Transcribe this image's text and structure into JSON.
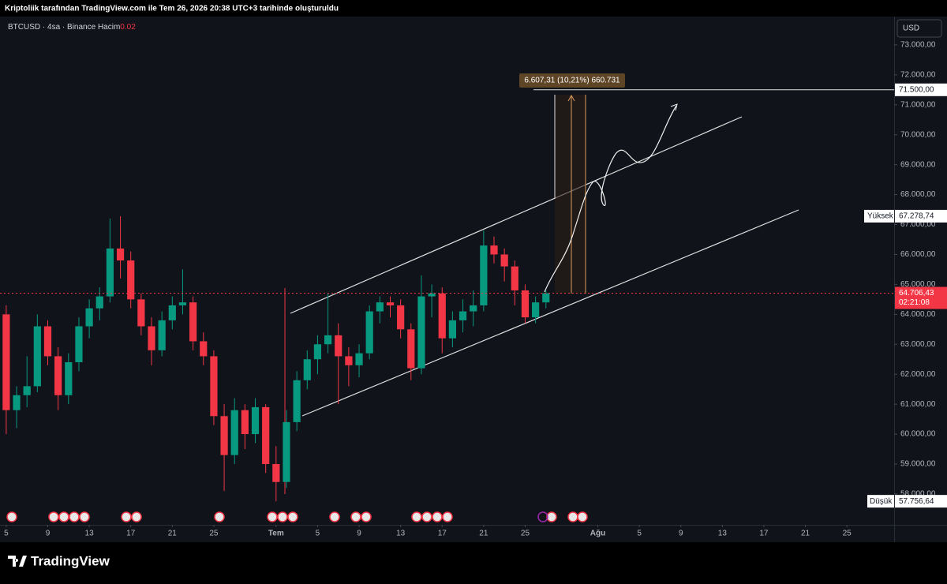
{
  "header": {
    "caption": "Kriptoliik tarafından TradingView.com ile Tem 26, 2026 20:38 UTC+3 tarihinde oluşturuldu",
    "brand": "TradingView"
  },
  "chart_data": {
    "type": "candlestick",
    "symbol": "BTCUSD",
    "interval": "4sa",
    "exchange": "Binance",
    "volume_name": "Hacim",
    "volume_value": 0.02,
    "currency": "USD",
    "up_color": "#089981",
    "down_color": "#f23645",
    "grid": false,
    "x": [
      5,
      6,
      7,
      8,
      9,
      10,
      11,
      12,
      13,
      14,
      15,
      16,
      17,
      18,
      19,
      20,
      21,
      22,
      23,
      24,
      25,
      26,
      27,
      28,
      29,
      30,
      31,
      32,
      33,
      34,
      35,
      36,
      37,
      38,
      39,
      40,
      41,
      42,
      43,
      44,
      45,
      46,
      47,
      48,
      49,
      50,
      51,
      52,
      53,
      54,
      55,
      56,
      57
    ],
    "open": [
      64000,
      60800,
      61300,
      61600,
      63600,
      62600,
      61300,
      62400,
      63600,
      64200,
      64600,
      66200,
      65800,
      64500,
      63600,
      62800,
      63800,
      64300,
      64400,
      63100,
      62600,
      60600,
      59300,
      60800,
      60000,
      60900,
      59000,
      58400,
      60400,
      61800,
      62500,
      63000,
      63300,
      62600,
      62300,
      62700,
      64100,
      64400,
      64300,
      63500,
      62200,
      64600,
      64700,
      63200,
      63800,
      64100,
      64300,
      66300,
      66000,
      65600,
      64800,
      63900,
      64400
    ],
    "high": [
      64300,
      61600,
      62600,
      64000,
      63800,
      62900,
      62700,
      63900,
      64500,
      64900,
      67200,
      67278.74,
      66100,
      64700,
      63900,
      64100,
      64600,
      65500,
      64600,
      63400,
      62800,
      61000,
      61200,
      61000,
      61200,
      61000,
      59600,
      60800,
      62100,
      62800,
      63300,
      64700,
      63700,
      62900,
      63000,
      64300,
      64600,
      64600,
      64500,
      63700,
      65300,
      65000,
      64900,
      64100,
      64500,
      64800,
      66800,
      66600,
      66200,
      65800,
      65000,
      64600,
      64800
    ],
    "low": [
      60000,
      60200,
      60900,
      61400,
      62300,
      60800,
      61000,
      62100,
      63200,
      63800,
      64400,
      65200,
      64200,
      63300,
      62300,
      62600,
      63500,
      64000,
      62800,
      62300,
      60300,
      58100,
      59000,
      59500,
      59700,
      58700,
      57756.64,
      58200,
      60100,
      61500,
      62000,
      62700,
      61000,
      61600,
      61900,
      62500,
      63700,
      63900,
      63200,
      61800,
      62000,
      63900,
      62700,
      62900,
      63400,
      63600,
      64100,
      65700,
      65100,
      64300,
      63700,
      63700,
      64200
    ],
    "close": [
      60800,
      61300,
      61600,
      63600,
      62600,
      61300,
      62400,
      63600,
      64200,
      64600,
      66200,
      65800,
      64500,
      63600,
      62800,
      63800,
      64300,
      64400,
      63100,
      62600,
      60600,
      59300,
      60800,
      60000,
      60900,
      59000,
      58400,
      60400,
      61800,
      62500,
      63000,
      63300,
      62600,
      62300,
      62700,
      64100,
      64400,
      64300,
      63500,
      62200,
      64600,
      64700,
      63200,
      63800,
      64100,
      64300,
      66300,
      66000,
      65600,
      64800,
      63900,
      64400,
      64706.43
    ],
    "xlim": [
      4.4,
      90.55
    ],
    "xticks": [
      5,
      9,
      13,
      17,
      21,
      25,
      {
        "value": 31,
        "label": "Tem"
      },
      {
        "value": 35,
        "label": "5"
      },
      {
        "value": 39,
        "label": "9"
      },
      {
        "value": 43,
        "label": "13"
      },
      {
        "value": 47,
        "label": "17"
      },
      {
        "value": 51,
        "label": "21"
      },
      {
        "value": 55,
        "label": "25"
      },
      {
        "value": 62,
        "label": "Ağu"
      },
      {
        "value": 66,
        "label": "5"
      },
      {
        "value": 70,
        "label": "9"
      },
      {
        "value": 74,
        "label": "13"
      },
      {
        "value": 78,
        "label": "17"
      },
      {
        "value": 82,
        "label": "21"
      },
      {
        "value": 86,
        "label": "25"
      }
    ],
    "ylim": [
      56970,
      73920
    ],
    "yticks": [
      {
        "value": 58000,
        "label": "58.000,00"
      },
      {
        "value": 59000,
        "label": "59.000,00"
      },
      {
        "value": 60000,
        "label": "60.000,00"
      },
      {
        "value": 61000,
        "label": "61.000,00"
      },
      {
        "value": 62000,
        "label": "62.000,00"
      },
      {
        "value": 63000,
        "label": "63.000,00"
      },
      {
        "value": 64000,
        "label": "64.000,00"
      },
      {
        "value": 65000,
        "label": "65.000,00"
      },
      {
        "value": 66000,
        "label": "66.000,00"
      },
      {
        "value": 67000,
        "label": "67.000,00"
      },
      {
        "value": 68000,
        "label": "68.000,00"
      },
      {
        "value": 69000,
        "label": "69.000,00"
      },
      {
        "value": 70000,
        "label": "70.000,00"
      },
      {
        "value": 71000,
        "label": "71.000,00"
      },
      {
        "value": 72000,
        "label": "72.000,00"
      },
      {
        "value": 73000,
        "label": "73.000,00"
      }
    ],
    "target_line": {
      "value": 71500,
      "label": "71.500,00"
    },
    "last_price": {
      "value": 64706.43,
      "label": "64.706,43"
    },
    "countdown": "02:21:08",
    "high_marker": {
      "name": "Yüksek",
      "value": 67278.74,
      "label": "67.278,74"
    },
    "low_marker": {
      "name": "Düşük",
      "value": 57756.64,
      "label": "57.756,64"
    },
    "measure_label": "6.607,31 (10,21%) 660.731"
  }
}
